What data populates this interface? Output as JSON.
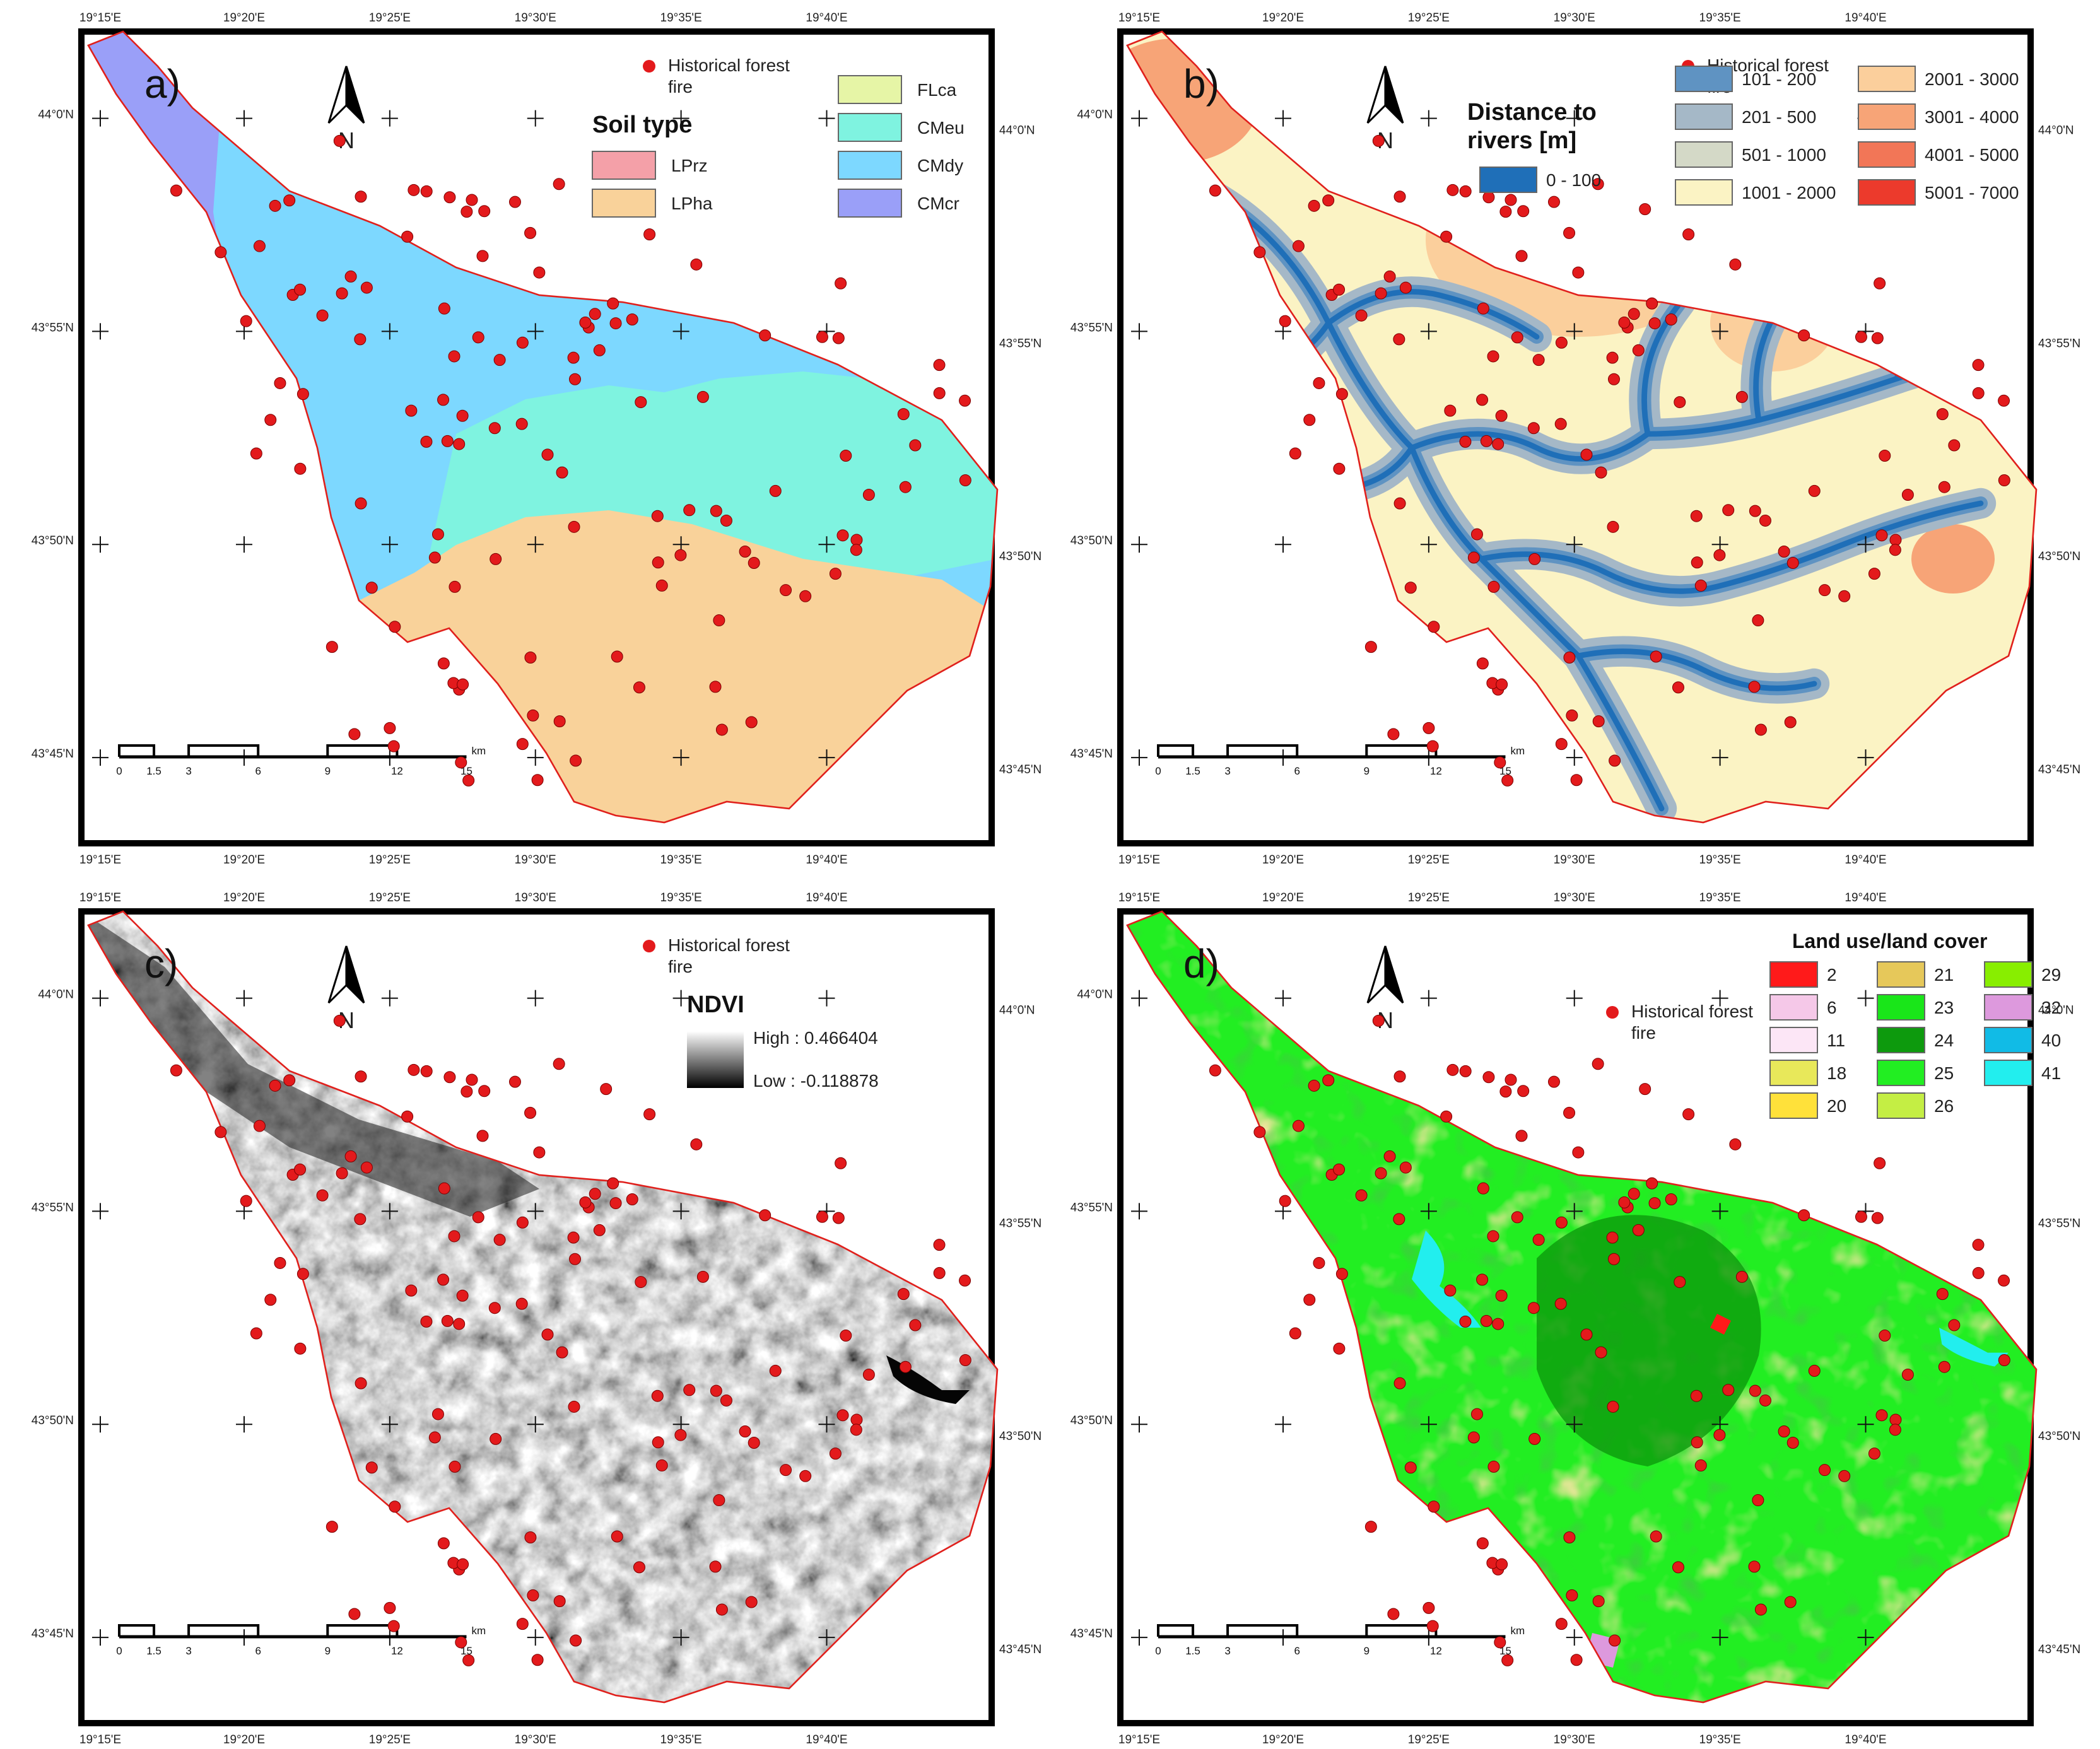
{
  "coords": {
    "lon_labels": [
      "19°15'E",
      "19°20'E",
      "19°25'E",
      "19°30'E",
      "19°35'E",
      "19°40'E"
    ],
    "lat_labels": [
      "44°0'N",
      "43°55'N",
      "43°50'N",
      "43°45'N"
    ]
  },
  "scale_bar": {
    "unit": "km",
    "ticks": [
      "0",
      "1.5",
      "3",
      "6",
      "9",
      "12",
      "15"
    ]
  },
  "north_label": "N",
  "fire_label_line1": "Historical forest",
  "fire_label_line2": "fire",
  "colors": {
    "fire_dot": "#e31a1c",
    "boundary": "#e0201c",
    "frame": "#000000"
  },
  "panels": [
    {
      "id": "a",
      "label": "a)",
      "legend_title": "Soil type",
      "legend": [
        {
          "label": "LPrz",
          "color": "#f4a0a8"
        },
        {
          "label": "LPha",
          "color": "#f9d29a"
        },
        {
          "label": "FLca",
          "color": "#e6f5a6"
        },
        {
          "label": "CMeu",
          "color": "#7ff3e0"
        },
        {
          "label": "CMdy",
          "color": "#7dd8ff"
        },
        {
          "label": "CMcr",
          "color": "#9a9ff8"
        }
      ]
    },
    {
      "id": "b",
      "label": "b)",
      "legend_title_line1": "Distance to",
      "legend_title_line2": "rivers [m]",
      "legend": [
        {
          "label": "0 - 100",
          "color": "#1f6fb8"
        },
        {
          "label": "101 - 200",
          "color": "#5f93c2"
        },
        {
          "label": "201 - 500",
          "color": "#a5b8c7"
        },
        {
          "label": "501 - 1000",
          "color": "#d4d9c7"
        },
        {
          "label": "1001 - 2000",
          "color": "#fbf3c4"
        },
        {
          "label": "2001 - 3000",
          "color": "#fbcf9c"
        },
        {
          "label": "3001 - 4000",
          "color": "#f7a477"
        },
        {
          "label": "4001 - 5000",
          "color": "#f27657"
        },
        {
          "label": "5001 - 7000",
          "color": "#ec3a2c"
        }
      ]
    },
    {
      "id": "c",
      "label": "c)",
      "legend_title": "NDVI",
      "ndvi_high": "High : 0.466404",
      "ndvi_low": "Low : -0.118878"
    },
    {
      "id": "d",
      "label": "d)",
      "legend_title": "Land use/land cover",
      "legend": [
        {
          "label": "2",
          "color": "#ff1a1a"
        },
        {
          "label": "6",
          "color": "#f5c8e8"
        },
        {
          "label": "11",
          "color": "#fce6f6"
        },
        {
          "label": "18",
          "color": "#e8e85a"
        },
        {
          "label": "20",
          "color": "#ffe13a"
        },
        {
          "label": "21",
          "color": "#e6c85a"
        },
        {
          "label": "23",
          "color": "#19e619"
        },
        {
          "label": "24",
          "color": "#0d9a0d"
        },
        {
          "label": "25",
          "color": "#22ee22"
        },
        {
          "label": "26",
          "color": "#c4ee44"
        },
        {
          "label": "29",
          "color": "#88ee00"
        },
        {
          "label": "32",
          "color": "#dd99dd"
        },
        {
          "label": "40",
          "color": "#11bbe6"
        },
        {
          "label": "41",
          "color": "#22eeee"
        }
      ]
    }
  ]
}
